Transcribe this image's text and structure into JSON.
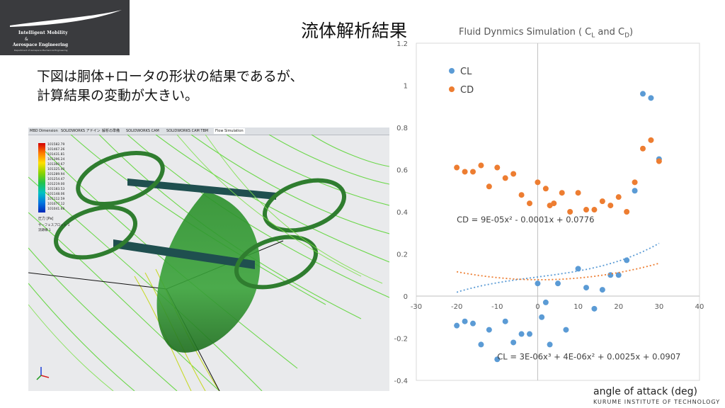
{
  "logo": {
    "line1": "Intelligent Mobility",
    "line2": "&",
    "line3": "Aerospace Engineering",
    "line4": "Department of Aerospace Mechanical Engineering"
  },
  "slide": {
    "title": "流体解析結果",
    "body_line1": "下図は胴体+ロータの形状の結果であるが、",
    "body_line2": "計算結果の変動が大きい。",
    "footer": "KURUME INSTITUTE OF TECHNOLOGY"
  },
  "sim": {
    "tabs": [
      "MBD Dimension",
      "SOLIDWORKS アドイン",
      "解析の準備",
      "SOLIDWORKS CAM",
      "SOLIDWORKS CAM TBM",
      "Flow Simulation"
    ],
    "legend_values": [
      "101582.79",
      "101467.26",
      "101431.81",
      "101396.24",
      "101360.67",
      "101325.40",
      "101289.94",
      "101254.47",
      "101219.00",
      "101183.53",
      "101148.06",
      "101112.59",
      "101077.12",
      "101041.66"
    ],
    "legend_unit": "圧力 [Pa]",
    "legend_note1": "サーフェスプロット 1",
    "legend_note2": "流跡線 1"
  },
  "chart_data": {
    "type": "scatter",
    "title_main": "Fluid Dynmics Simulation ( C",
    "title_sub1": "L",
    "title_mid": " and C",
    "title_sub2": "D",
    "title_end": ")",
    "xlabel": "angle of attack (deg)",
    "xlim": [
      -30,
      40
    ],
    "ylim": [
      -0.4,
      1.2
    ],
    "xticks": [
      -30,
      -20,
      -10,
      0,
      10,
      20,
      30,
      40
    ],
    "yticks": [
      -0.4,
      -0.2,
      0,
      0.2,
      0.4,
      0.6,
      0.8,
      1,
      1.2
    ],
    "xtick_labels": [
      "-30",
      "-20",
      "-10",
      "0",
      "10",
      "20",
      "30",
      "40"
    ],
    "ytick_labels": [
      "-0.4",
      "-0.2",
      "0",
      "0.2",
      "0.4",
      "0.6",
      "0.8",
      "1",
      "1.2"
    ],
    "grid": false,
    "legend_position": "top-left",
    "series": [
      {
        "name": "CL",
        "color": "#5b9bd5",
        "points": [
          [
            -20,
            -0.14
          ],
          [
            -18,
            -0.12
          ],
          [
            -16,
            -0.13
          ],
          [
            -14,
            -0.23
          ],
          [
            -12,
            -0.16
          ],
          [
            -10,
            -0.3
          ],
          [
            -8,
            -0.12
          ],
          [
            -6,
            -0.22
          ],
          [
            -4,
            -0.18
          ],
          [
            -2,
            -0.18
          ],
          [
            0,
            0.06
          ],
          [
            1,
            -0.1
          ],
          [
            2,
            -0.03
          ],
          [
            3,
            -0.23
          ],
          [
            5,
            0.06
          ],
          [
            7,
            -0.16
          ],
          [
            10,
            0.13
          ],
          [
            12,
            0.04
          ],
          [
            14,
            -0.06
          ],
          [
            16,
            0.03
          ],
          [
            18,
            0.1
          ],
          [
            20,
            0.1
          ],
          [
            22,
            0.17
          ],
          [
            24,
            0.5
          ],
          [
            26,
            0.96
          ],
          [
            28,
            0.94
          ],
          [
            30,
            0.65
          ]
        ],
        "trendline": {
          "type": "poly3",
          "coef": [
            0.0907,
            0.0025,
            4e-06,
            3e-06
          ],
          "label": "CL = 3E-06x³ + 4E-06x² + 0.0025x + 0.0907",
          "label_x": -10,
          "label_y": -0.3
        }
      },
      {
        "name": "CD",
        "color": "#ed7d31",
        "points": [
          [
            -20,
            0.61
          ],
          [
            -18,
            0.59
          ],
          [
            -16,
            0.59
          ],
          [
            -14,
            0.62
          ],
          [
            -12,
            0.52
          ],
          [
            -10,
            0.61
          ],
          [
            -8,
            0.56
          ],
          [
            -6,
            0.58
          ],
          [
            -4,
            0.48
          ],
          [
            -2,
            0.44
          ],
          [
            0,
            0.54
          ],
          [
            2,
            0.51
          ],
          [
            3,
            0.43
          ],
          [
            4,
            0.44
          ],
          [
            6,
            0.49
          ],
          [
            8,
            0.4
          ],
          [
            10,
            0.49
          ],
          [
            12,
            0.41
          ],
          [
            14,
            0.41
          ],
          [
            16,
            0.45
          ],
          [
            18,
            0.43
          ],
          [
            20,
            0.47
          ],
          [
            22,
            0.4
          ],
          [
            24,
            0.54
          ],
          [
            26,
            0.7
          ],
          [
            28,
            0.74
          ],
          [
            30,
            0.64
          ]
        ],
        "trendline": {
          "type": "poly2",
          "coef": [
            0.0776,
            -0.0001,
            9e-05
          ],
          "label": "CD = 9E-05x² - 0.0001x + 0.0776",
          "label_x": -20,
          "label_y": 0.35
        }
      }
    ]
  }
}
